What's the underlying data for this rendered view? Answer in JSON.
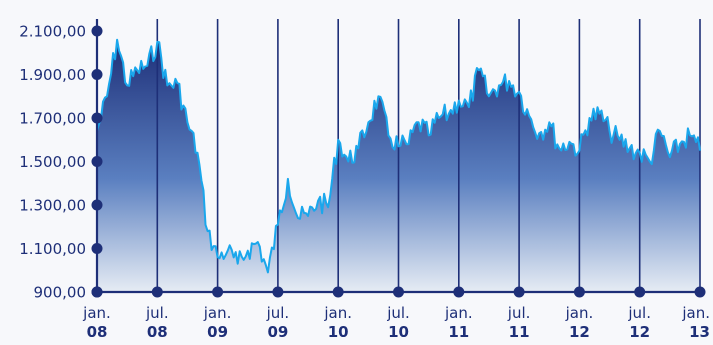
{
  "chart_data": {
    "type": "area",
    "title": "",
    "xlabel": "",
    "ylabel": "",
    "ylim": [
      900,
      2100
    ],
    "xlim": [
      "2008-01",
      "2013-01"
    ],
    "grid": true,
    "y_ticks": [
      {
        "value": 2100,
        "label": "2.100,00"
      },
      {
        "value": 1900,
        "label": "1.900,00"
      },
      {
        "value": 1700,
        "label": "1.700,00"
      },
      {
        "value": 1500,
        "label": "1.500,00"
      },
      {
        "value": 1300,
        "label": "1.300,00"
      },
      {
        "value": 1100,
        "label": "1.100,00"
      },
      {
        "value": 900,
        "label": "900,00"
      }
    ],
    "x_ticks": [
      {
        "date": "2008-01",
        "month": "jan.",
        "year": "08"
      },
      {
        "date": "2008-07",
        "month": "jul.",
        "year": "08"
      },
      {
        "date": "2009-01",
        "month": "jan.",
        "year": "09"
      },
      {
        "date": "2009-07",
        "month": "jul.",
        "year": "09"
      },
      {
        "date": "2010-01",
        "month": "jan.",
        "year": "10"
      },
      {
        "date": "2010-07",
        "month": "jul.",
        "year": "10"
      },
      {
        "date": "2011-01",
        "month": "jan.",
        "year": "11"
      },
      {
        "date": "2011-07",
        "month": "jul.",
        "year": "11"
      },
      {
        "date": "2012-01",
        "month": "jan.",
        "year": "12"
      },
      {
        "date": "2012-07",
        "month": "jul.",
        "year": "12"
      },
      {
        "date": "2013-01",
        "month": "jan.",
        "year": "13"
      }
    ],
    "series": [
      {
        "x": [
          "2008-01",
          "2008-02",
          "2008-03",
          "2008-04",
          "2008-05",
          "2008-06",
          "2008-07",
          "2008-08",
          "2008-09",
          "2008-10",
          "2008-11",
          "2008-12",
          "2009-01",
          "2009-02",
          "2009-03",
          "2009-04",
          "2009-05",
          "2009-06",
          "2009-07",
          "2009-08",
          "2009-09",
          "2009-10",
          "2009-11",
          "2009-12",
          "2010-01",
          "2010-02",
          "2010-03",
          "2010-04",
          "2010-05",
          "2010-06",
          "2010-07",
          "2010-08",
          "2010-09",
          "2010-10",
          "2010-11",
          "2010-12",
          "2011-01",
          "2011-02",
          "2011-03",
          "2011-04",
          "2011-05",
          "2011-06",
          "2011-07",
          "2011-08",
          "2011-09",
          "2011-10",
          "2011-11",
          "2011-12",
          "2012-01",
          "2012-02",
          "2012-03",
          "2012-04",
          "2012-05",
          "2012-06",
          "2012-07",
          "2012-08",
          "2012-09",
          "2012-10",
          "2012-11",
          "2012-12",
          "2013-01"
        ],
        "values": [
          1640,
          1800,
          2060,
          1850,
          1920,
          1940,
          2050,
          1850,
          1860,
          1680,
          1540,
          1180,
          1060,
          1090,
          1030,
          1090,
          1130,
          990,
          1210,
          1420,
          1240,
          1250,
          1320,
          1290,
          1600,
          1500,
          1560,
          1680,
          1800,
          1620,
          1570,
          1580,
          1680,
          1620,
          1700,
          1720,
          1780,
          1750,
          1920,
          1800,
          1850,
          1870,
          1820,
          1710,
          1630,
          1680,
          1560,
          1590,
          1550,
          1700,
          1720,
          1640,
          1600,
          1560,
          1540,
          1500,
          1640,
          1520,
          1580,
          1620,
          1550
        ],
        "color": "#1aa7ec"
      }
    ],
    "colors": {
      "line": "#1aa7ec",
      "fill_top": "#1e2f78",
      "fill_bottom": "#e6ecf4",
      "axis": "#1e2f78",
      "marker": "#1e2f78"
    }
  }
}
